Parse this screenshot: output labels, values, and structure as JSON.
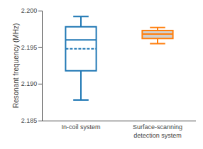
{
  "chart_data": {
    "type": "box",
    "ylabel": "Resonant frequency (MHz)",
    "categories": [
      "In-coil system",
      "Surface-scanning\ndetection system"
    ],
    "values": [
      {
        "whislo": 2.1878,
        "q1": 2.1918,
        "med": 2.196,
        "q3": 2.1978,
        "whishi": 2.1992,
        "mean": 2.1948
      },
      {
        "whislo": 2.1955,
        "q1": 2.1962,
        "med": 2.1968,
        "q3": 2.1973,
        "whishi": 2.1977
      }
    ],
    "colors": [
      "#ffffff",
      "#d0d0d0"
    ],
    "ylim": [
      2.185,
      2.2
    ],
    "yticks": [
      2.185,
      {
        "value": 2.19,
        "label": "2.190"
      },
      2.195,
      {
        "value": 2.2,
        "label": "2.200"
      }
    ],
    "grid": false
  }
}
